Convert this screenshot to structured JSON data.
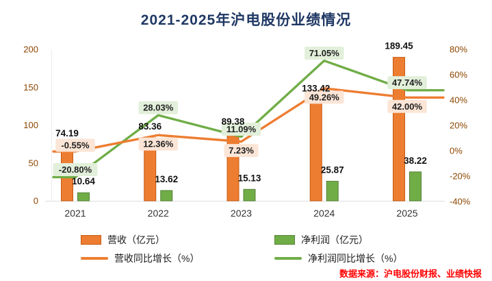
{
  "title": "2021-2025年沪电股份业绩情况",
  "source_note": "数据来源：沪电股份财报、业绩快报",
  "colors": {
    "title": "#1F3864",
    "revenue_bar": "#ED7D31",
    "revenue_bar_border": "#C55A11",
    "profit_bar": "#70AD47",
    "profit_bar_border": "#548235",
    "revenue_line": "#ED7D31",
    "profit_line": "#70AD47",
    "revenue_label_bg": "#FBE5D6",
    "profit_label_bg": "#E2EFDA",
    "axis_text": "#8C4600",
    "year_text": "#333333",
    "source_text": "#FF0000"
  },
  "legend": [
    {
      "label": "营收（亿元）",
      "type": "bar",
      "color": "#ED7D31",
      "border": "#C55A11"
    },
    {
      "label": "净利润（亿元）",
      "type": "bar",
      "color": "#70AD47",
      "border": "#548235"
    },
    {
      "label": "营收同比增长（%）",
      "type": "line",
      "color": "#ED7D31"
    },
    {
      "label": "净利润同比增长（%）",
      "type": "line",
      "color": "#70AD47"
    }
  ],
  "chart_data": {
    "type": "bar",
    "subtype": "combo bar+line, dual axis",
    "title": "2021-2025年沪电股份业绩情况",
    "categories": [
      "2021",
      "2022",
      "2023",
      "2024",
      "2025"
    ],
    "series": [
      {
        "name": "营收（亿元）",
        "type": "bar",
        "axis": "left",
        "values": [
          74.19,
          83.36,
          89.38,
          133.42,
          189.45
        ],
        "labels": [
          "74.19",
          "83.36",
          "89.38",
          "133.42",
          "189.45"
        ]
      },
      {
        "name": "净利润（亿元）",
        "type": "bar",
        "axis": "left",
        "values": [
          10.64,
          13.62,
          15.13,
          25.87,
          38.22
        ],
        "labels": [
          "10.64",
          "13.62",
          "15.13",
          "25.87",
          "38.22"
        ]
      },
      {
        "name": "营收同比增长（%）",
        "type": "line",
        "axis": "right",
        "values": [
          -0.55,
          12.36,
          7.23,
          49.26,
          42.0
        ],
        "labels": [
          "-0.55%",
          "12.36%",
          "7.23%",
          "49.26%",
          "42.00%"
        ]
      },
      {
        "name": "净利润同比增长（%）",
        "type": "line",
        "axis": "right",
        "values": [
          -20.8,
          28.03,
          11.09,
          71.05,
          47.74
        ],
        "labels": [
          "-20.80%",
          "28.03%",
          "11.09%",
          "71.05%",
          "47.74%"
        ]
      }
    ],
    "left_axis": {
      "tick_labels": [
        "0",
        "50",
        "100",
        "150",
        "200"
      ],
      "tick_values": [
        0,
        50,
        100,
        150,
        200
      ],
      "range": [
        0,
        200
      ]
    },
    "right_axis": {
      "tick_labels": [
        "-40%",
        "-20%",
        "0%",
        "20%",
        "40%",
        "60%",
        "80%"
      ],
      "tick_values": [
        -40,
        -20,
        0,
        20,
        40,
        60,
        80
      ],
      "range": [
        -40,
        80
      ]
    },
    "grid": false,
    "legend_position": "bottom"
  }
}
